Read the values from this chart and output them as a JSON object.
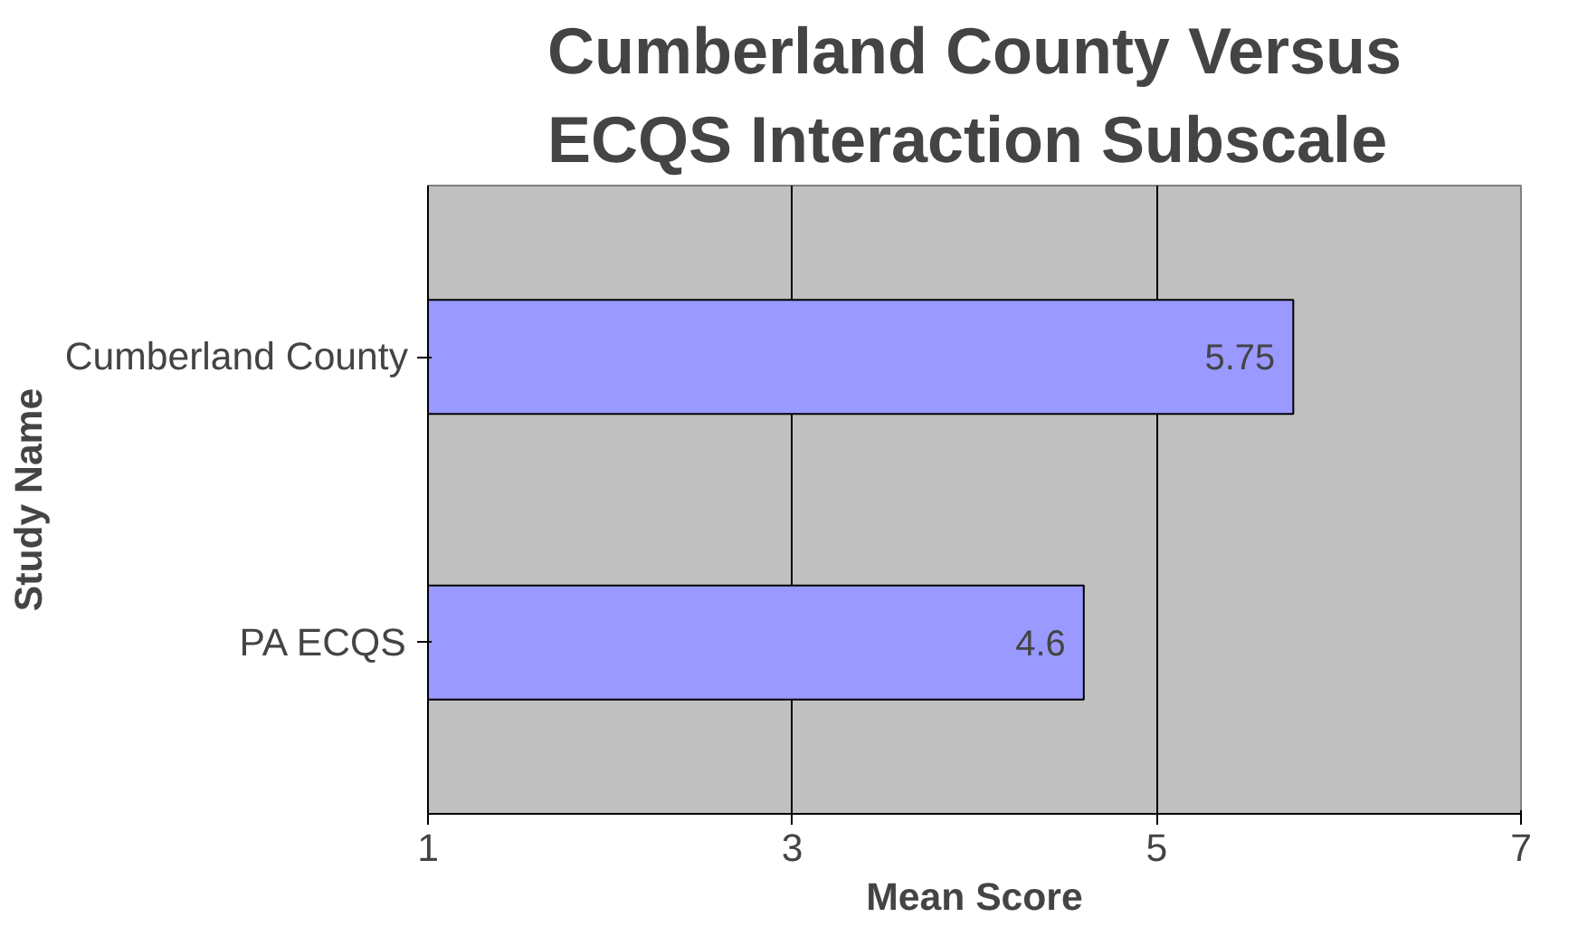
{
  "chart_data": {
    "type": "bar",
    "orientation": "horizontal",
    "title": "Cumberland County Versus ECQS Interaction Subscale",
    "categories": [
      "Cumberland County",
      "PA ECQS"
    ],
    "values": [
      5.75,
      4.6
    ],
    "color": "#9999ff",
    "xlabel": "Mean Score",
    "ylabel": "Study Name",
    "xlim": [
      1,
      7
    ],
    "xticks": [
      1,
      3,
      5,
      7
    ],
    "grid": "x",
    "data_labels": true
  }
}
